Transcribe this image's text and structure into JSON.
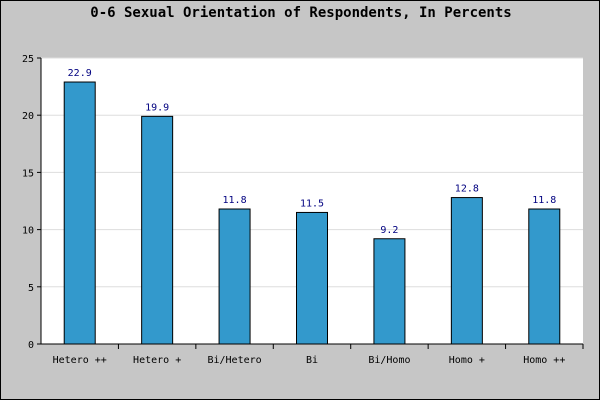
{
  "chart_data": {
    "type": "bar",
    "title": "0-6 Sexual Orientation of Respondents, In Percents",
    "xlabel": "",
    "ylabel": "",
    "categories": [
      "Hetero ++",
      "Hetero +",
      "Bi/Hetero",
      "Bi",
      "Bi/Homo",
      "Homo +",
      "Homo ++"
    ],
    "values": [
      22.9,
      19.9,
      11.8,
      11.5,
      9.2,
      12.8,
      11.8
    ],
    "value_labels": [
      "22.9",
      "19.9",
      "11.8",
      "11.5",
      "9.2",
      "12.8",
      "11.8"
    ],
    "ylim": [
      0,
      25
    ],
    "yticks": [
      0,
      5,
      10,
      15,
      20,
      25
    ],
    "grid": true,
    "legend": "none",
    "colors": {
      "bar": "#3399cc",
      "plot_background": "#ffffff",
      "page_background": "#c6c6c6",
      "data_label": "#000080",
      "grid": "#dddddd"
    }
  }
}
